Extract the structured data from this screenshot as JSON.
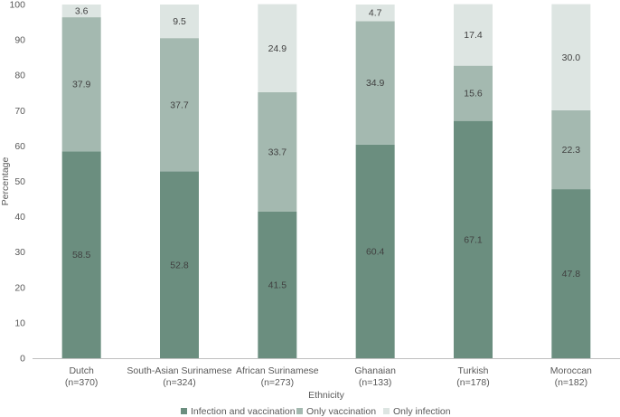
{
  "chart_data": {
    "type": "bar",
    "stacked": true,
    "xlabel": "Ethnicity",
    "ylabel": "Percentage",
    "ylim": [
      0,
      100
    ],
    "yticks": [
      0,
      10,
      20,
      30,
      40,
      50,
      60,
      70,
      80,
      90,
      100
    ],
    "grid": false,
    "legend_position": "bottom",
    "categories": [
      {
        "name": "Dutch",
        "n": "(n=370)"
      },
      {
        "name": "South-Asian Surinamese",
        "n": "(n=324)"
      },
      {
        "name": "African Surinamese",
        "n": "(n=273)"
      },
      {
        "name": "Ghanaian",
        "n": "(n=133)"
      },
      {
        "name": "Turkish",
        "n": "(n=178)"
      },
      {
        "name": "Moroccan",
        "n": "(n=182)"
      }
    ],
    "series": [
      {
        "name": "Infection and vaccination",
        "color": "#6b8e7f",
        "values": [
          58.5,
          52.8,
          41.5,
          60.4,
          67.1,
          47.8
        ],
        "labels": [
          "58.5",
          "52.8",
          "41.5",
          "60.4",
          "67.1",
          "47.8"
        ]
      },
      {
        "name": "Only vaccination",
        "color": "#a4b9b0",
        "values": [
          37.9,
          37.7,
          33.7,
          34.9,
          15.6,
          22.3
        ],
        "labels": [
          "37.9",
          "37.7",
          "33.7",
          "34.9",
          "15.6",
          "22.3"
        ]
      },
      {
        "name": "Only infection",
        "color": "#dde5e2",
        "values": [
          3.6,
          9.5,
          24.9,
          4.7,
          17.4,
          30.0
        ],
        "labels": [
          "3.6",
          "9.5",
          "24.9",
          "4.7",
          "17.4",
          "30.0"
        ]
      }
    ]
  }
}
